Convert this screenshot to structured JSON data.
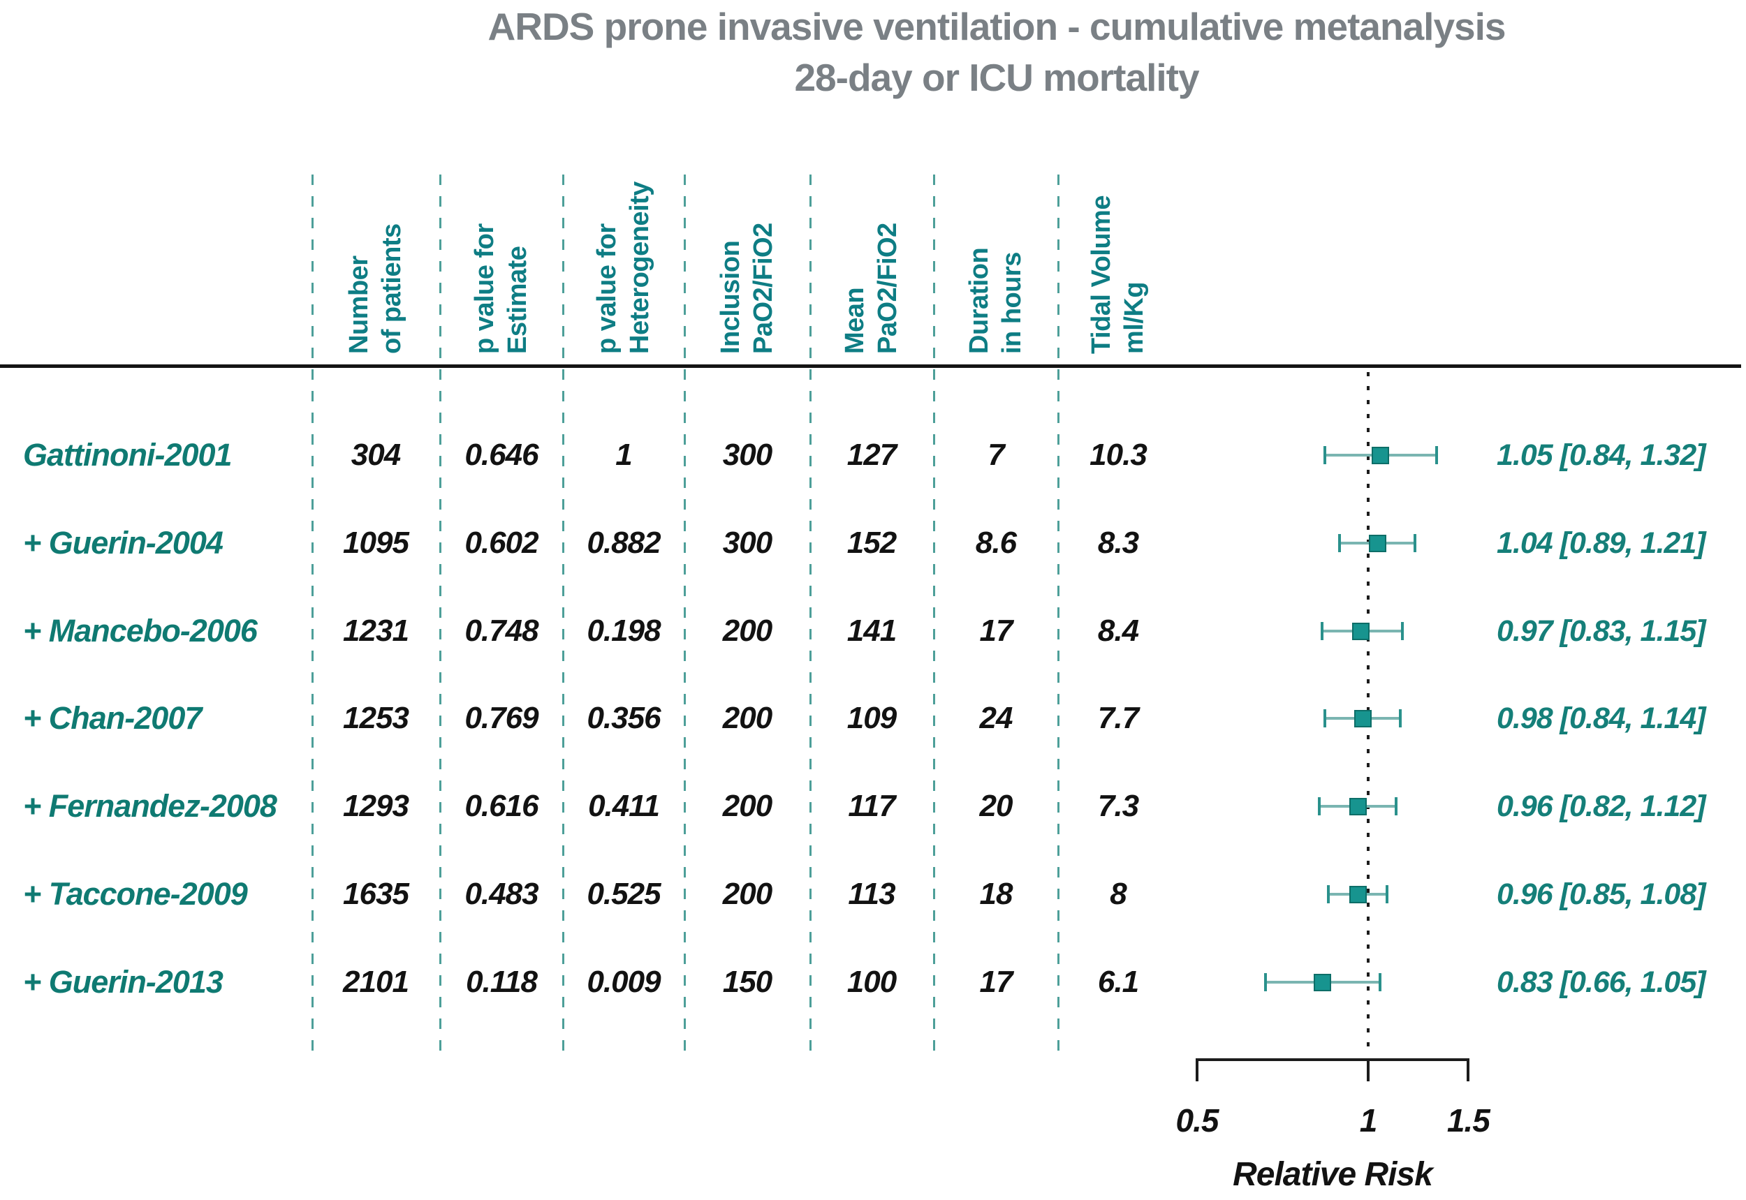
{
  "title": {
    "line1": "ARDS prone invasive ventilation - cumulative metanalysis",
    "line2": "28-day or ICU mortality"
  },
  "columns": [
    {
      "key": "n_patients",
      "line1": "Number",
      "line2": "of patients"
    },
    {
      "key": "p_estimate",
      "line1": "p value for",
      "line2": "Estimate"
    },
    {
      "key": "p_heterogeneity",
      "line1": "p value for",
      "line2": "Heterogeneity"
    },
    {
      "key": "inclusion_pao2_fio2",
      "line1": "Inclusion",
      "line2": "PaO2/FiO2"
    },
    {
      "key": "mean_pao2_fio2",
      "line1": "Mean",
      "line2": "PaO2/FiO2"
    },
    {
      "key": "duration_hours",
      "line1": "Duration",
      "line2": "in hours"
    },
    {
      "key": "tidal_volume_ml_kg",
      "line1": "Tidal Volume",
      "line2": "ml/Kg"
    }
  ],
  "chart_data": {
    "type": "forest",
    "title": "ARDS prone invasive ventilation - cumulative metanalysis",
    "subtitle": "28-day or ICU mortality",
    "x_axis": {
      "label": "Relative Risk",
      "scale": "log",
      "ticks": [
        "0.5",
        "1",
        "1.5"
      ],
      "tick_values": [
        0.5,
        1,
        1.5
      ],
      "range": [
        0.5,
        1.5
      ]
    },
    "reference_line": 1,
    "studies": [
      {
        "label": "Gattinoni-2001",
        "n_patients": "304",
        "p_estimate": "0.646",
        "p_heterogeneity": "1",
        "inclusion_pao2_fio2": "300",
        "mean_pao2_fio2": "127",
        "duration_hours": "7",
        "tidal_volume_ml_kg": "10.3",
        "rr": 1.05,
        "ci_low": 0.84,
        "ci_high": 1.32,
        "rr_text": "1.05 [0.84, 1.32]"
      },
      {
        "label": "+ Guerin-2004",
        "n_patients": "1095",
        "p_estimate": "0.602",
        "p_heterogeneity": "0.882",
        "inclusion_pao2_fio2": "300",
        "mean_pao2_fio2": "152",
        "duration_hours": "8.6",
        "tidal_volume_ml_kg": "8.3",
        "rr": 1.04,
        "ci_low": 0.89,
        "ci_high": 1.21,
        "rr_text": "1.04 [0.89, 1.21]"
      },
      {
        "label": "+ Mancebo-2006",
        "n_patients": "1231",
        "p_estimate": "0.748",
        "p_heterogeneity": "0.198",
        "inclusion_pao2_fio2": "200",
        "mean_pao2_fio2": "141",
        "duration_hours": "17",
        "tidal_volume_ml_kg": "8.4",
        "rr": 0.97,
        "ci_low": 0.83,
        "ci_high": 1.15,
        "rr_text": "0.97 [0.83, 1.15]"
      },
      {
        "label": "+ Chan-2007",
        "n_patients": "1253",
        "p_estimate": "0.769",
        "p_heterogeneity": "0.356",
        "inclusion_pao2_fio2": "200",
        "mean_pao2_fio2": "109",
        "duration_hours": "24",
        "tidal_volume_ml_kg": "7.7",
        "rr": 0.98,
        "ci_low": 0.84,
        "ci_high": 1.14,
        "rr_text": "0.98 [0.84, 1.14]"
      },
      {
        "label": "+ Fernandez-2008",
        "n_patients": "1293",
        "p_estimate": "0.616",
        "p_heterogeneity": "0.411",
        "inclusion_pao2_fio2": "200",
        "mean_pao2_fio2": "117",
        "duration_hours": "20",
        "tidal_volume_ml_kg": "7.3",
        "rr": 0.96,
        "ci_low": 0.82,
        "ci_high": 1.12,
        "rr_text": "0.96 [0.82, 1.12]"
      },
      {
        "label": "+ Taccone-2009",
        "n_patients": "1635",
        "p_estimate": "0.483",
        "p_heterogeneity": "0.525",
        "inclusion_pao2_fio2": "200",
        "mean_pao2_fio2": "113",
        "duration_hours": "18",
        "tidal_volume_ml_kg": "8",
        "rr": 0.96,
        "ci_low": 0.85,
        "ci_high": 1.08,
        "rr_text": "0.96 [0.85, 1.08]"
      },
      {
        "label": "+ Guerin-2013",
        "n_patients": "2101",
        "p_estimate": "0.118",
        "p_heterogeneity": "0.009",
        "inclusion_pao2_fio2": "150",
        "mean_pao2_fio2": "100",
        "duration_hours": "17",
        "tidal_volume_ml_kg": "6.1",
        "rr": 0.83,
        "ci_low": 0.66,
        "ci_high": 1.05,
        "rr_text": "0.83 [0.66, 1.05]"
      }
    ]
  },
  "colors": {
    "teal_text": "#0e7d84",
    "teal_label": "#0f7a72",
    "marker_fill": "#17948f",
    "ci_line": "#7ab5b1",
    "title_gray": "#7a8085",
    "dash_line": "#4d9f99",
    "value_black": "#121212"
  }
}
